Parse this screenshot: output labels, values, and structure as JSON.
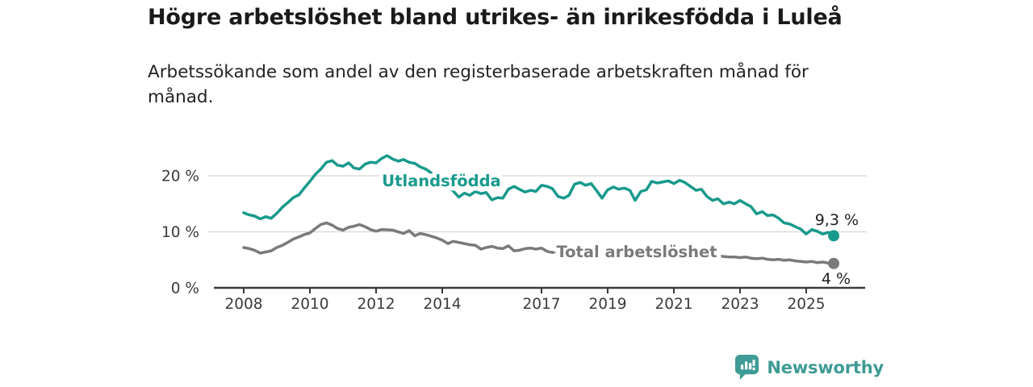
{
  "header": {
    "title": "Högre arbetslöshet bland utrikes- än inrikesfödda i Luleå",
    "subtitle": "Arbetssökande som andel av den registerbaserade arbetskraften månad för månad."
  },
  "colors": {
    "foreign_born_line": "#189A8C",
    "total_line": "#7A7A7A",
    "gridline": "#DBDBDB",
    "axis": "#3A3A3A",
    "tick_label": "#3A3A3A",
    "annotation_text": "#222222",
    "brand_teal": "#3F9B95"
  },
  "chart_data": {
    "type": "line",
    "title": "Högre arbetslöshet bland utrikes- än inrikesfödda i Luleå",
    "subtitle": "Arbetssökande som andel av den registerbaserade arbetskraften månad för månad.",
    "unit": "%",
    "grid": "horizontal",
    "legend_position": "inline-labels",
    "xlim": [
      2007.6,
      2026.4
    ],
    "ylim": [
      0,
      26
    ],
    "x_ticks": [
      2008,
      2010,
      2012,
      2014,
      2017,
      2019,
      2021,
      2023,
      2025
    ],
    "y_ticks": [
      {
        "value": 0,
        "label": "0 %"
      },
      {
        "value": 10,
        "label": "10 %"
      },
      {
        "value": 20,
        "label": "20 %"
      }
    ],
    "series": [
      {
        "name": "Utlandsfödda",
        "color": "#189A8C",
        "end_label": "9,3 %",
        "points": [
          [
            2008.0,
            13.4
          ],
          [
            2008.17,
            13.0
          ],
          [
            2008.33,
            12.8
          ],
          [
            2008.5,
            12.3
          ],
          [
            2008.67,
            12.7
          ],
          [
            2008.83,
            12.4
          ],
          [
            2009.0,
            13.3
          ],
          [
            2009.17,
            14.4
          ],
          [
            2009.33,
            15.2
          ],
          [
            2009.5,
            16.1
          ],
          [
            2009.67,
            16.6
          ],
          [
            2009.83,
            17.8
          ],
          [
            2010.0,
            19.0
          ],
          [
            2010.17,
            20.3
          ],
          [
            2010.33,
            21.2
          ],
          [
            2010.5,
            22.4
          ],
          [
            2010.67,
            22.7
          ],
          [
            2010.83,
            21.9
          ],
          [
            2011.0,
            21.7
          ],
          [
            2011.17,
            22.3
          ],
          [
            2011.33,
            21.4
          ],
          [
            2011.5,
            21.2
          ],
          [
            2011.67,
            22.1
          ],
          [
            2011.83,
            22.4
          ],
          [
            2012.0,
            22.3
          ],
          [
            2012.17,
            23.1
          ],
          [
            2012.33,
            23.6
          ],
          [
            2012.5,
            23.0
          ],
          [
            2012.67,
            22.6
          ],
          [
            2012.83,
            22.9
          ],
          [
            2013.0,
            22.4
          ],
          [
            2013.17,
            22.2
          ],
          [
            2013.33,
            21.6
          ],
          [
            2013.5,
            21.2
          ],
          [
            2013.67,
            20.5
          ],
          [
            2013.83,
            19.6
          ],
          [
            2014.0,
            18.6
          ],
          [
            2014.17,
            17.9
          ],
          [
            2014.33,
            17.3
          ],
          [
            2014.5,
            16.2
          ],
          [
            2014.67,
            16.9
          ],
          [
            2014.83,
            16.5
          ],
          [
            2015.0,
            17.2
          ],
          [
            2015.17,
            16.8
          ],
          [
            2015.33,
            17.0
          ],
          [
            2015.5,
            15.7
          ],
          [
            2015.67,
            16.1
          ],
          [
            2015.83,
            16.0
          ],
          [
            2016.0,
            17.6
          ],
          [
            2016.17,
            18.1
          ],
          [
            2016.33,
            17.6
          ],
          [
            2016.5,
            17.1
          ],
          [
            2016.67,
            17.4
          ],
          [
            2016.83,
            17.2
          ],
          [
            2017.0,
            18.3
          ],
          [
            2017.17,
            18.1
          ],
          [
            2017.33,
            17.7
          ],
          [
            2017.5,
            16.3
          ],
          [
            2017.67,
            16.0
          ],
          [
            2017.83,
            16.5
          ],
          [
            2018.0,
            18.5
          ],
          [
            2018.17,
            18.8
          ],
          [
            2018.33,
            18.3
          ],
          [
            2018.5,
            18.6
          ],
          [
            2018.67,
            17.3
          ],
          [
            2018.83,
            16.0
          ],
          [
            2019.0,
            17.5
          ],
          [
            2019.17,
            18.0
          ],
          [
            2019.33,
            17.6
          ],
          [
            2019.5,
            17.8
          ],
          [
            2019.67,
            17.4
          ],
          [
            2019.83,
            15.6
          ],
          [
            2020.0,
            17.2
          ],
          [
            2020.17,
            17.5
          ],
          [
            2020.33,
            19.0
          ],
          [
            2020.5,
            18.7
          ],
          [
            2020.67,
            18.9
          ],
          [
            2020.83,
            19.1
          ],
          [
            2021.0,
            18.6
          ],
          [
            2021.17,
            19.2
          ],
          [
            2021.33,
            18.8
          ],
          [
            2021.5,
            18.1
          ],
          [
            2021.67,
            17.4
          ],
          [
            2021.83,
            17.6
          ],
          [
            2022.0,
            16.3
          ],
          [
            2022.17,
            15.6
          ],
          [
            2022.33,
            15.9
          ],
          [
            2022.5,
            15.0
          ],
          [
            2022.67,
            15.3
          ],
          [
            2022.83,
            15.0
          ],
          [
            2023.0,
            15.6
          ],
          [
            2023.17,
            15.0
          ],
          [
            2023.33,
            14.5
          ],
          [
            2023.5,
            13.2
          ],
          [
            2023.67,
            13.6
          ],
          [
            2023.83,
            12.9
          ],
          [
            2024.0,
            13.0
          ],
          [
            2024.17,
            12.4
          ],
          [
            2024.33,
            11.6
          ],
          [
            2024.5,
            11.4
          ],
          [
            2024.67,
            10.9
          ],
          [
            2024.83,
            10.5
          ],
          [
            2025.0,
            9.6
          ],
          [
            2025.17,
            10.4
          ],
          [
            2025.33,
            10.1
          ],
          [
            2025.5,
            9.6
          ],
          [
            2025.67,
            9.9
          ],
          [
            2025.83,
            9.3
          ]
        ]
      },
      {
        "name": "Total arbetslöshet",
        "color": "#7A7A7A",
        "end_label": "4 %",
        "points": [
          [
            2008.0,
            7.2
          ],
          [
            2008.17,
            7.0
          ],
          [
            2008.33,
            6.7
          ],
          [
            2008.5,
            6.2
          ],
          [
            2008.67,
            6.4
          ],
          [
            2008.83,
            6.6
          ],
          [
            2009.0,
            7.2
          ],
          [
            2009.17,
            7.6
          ],
          [
            2009.33,
            8.1
          ],
          [
            2009.5,
            8.7
          ],
          [
            2009.67,
            9.1
          ],
          [
            2009.83,
            9.5
          ],
          [
            2010.0,
            9.8
          ],
          [
            2010.17,
            10.6
          ],
          [
            2010.33,
            11.3
          ],
          [
            2010.5,
            11.6
          ],
          [
            2010.67,
            11.2
          ],
          [
            2010.83,
            10.6
          ],
          [
            2011.0,
            10.3
          ],
          [
            2011.17,
            10.8
          ],
          [
            2011.33,
            11.0
          ],
          [
            2011.5,
            11.3
          ],
          [
            2011.67,
            10.9
          ],
          [
            2011.83,
            10.4
          ],
          [
            2012.0,
            10.1
          ],
          [
            2012.17,
            10.4
          ],
          [
            2012.5,
            10.3
          ],
          [
            2012.83,
            9.7
          ],
          [
            2013.0,
            10.2
          ],
          [
            2013.17,
            9.3
          ],
          [
            2013.33,
            9.7
          ],
          [
            2013.5,
            9.5
          ],
          [
            2013.67,
            9.2
          ],
          [
            2013.83,
            8.9
          ],
          [
            2014.0,
            8.5
          ],
          [
            2014.17,
            7.9
          ],
          [
            2014.33,
            8.3
          ],
          [
            2014.5,
            8.1
          ],
          [
            2014.67,
            7.9
          ],
          [
            2014.83,
            7.7
          ],
          [
            2015.0,
            7.6
          ],
          [
            2015.17,
            6.9
          ],
          [
            2015.33,
            7.2
          ],
          [
            2015.5,
            7.4
          ],
          [
            2015.67,
            7.1
          ],
          [
            2015.83,
            7.0
          ],
          [
            2016.0,
            7.5
          ],
          [
            2016.17,
            6.6
          ],
          [
            2016.33,
            6.7
          ],
          [
            2016.5,
            7.0
          ],
          [
            2016.67,
            7.1
          ],
          [
            2016.83,
            6.9
          ],
          [
            2017.0,
            7.1
          ],
          [
            2017.17,
            6.5
          ],
          [
            2017.33,
            6.3
          ],
          [
            2017.5,
            6.6
          ],
          [
            2017.67,
            6.5
          ],
          [
            2017.83,
            6.3
          ],
          [
            2018.0,
            6.4
          ],
          [
            2018.5,
            6.2
          ],
          [
            2019.0,
            6.0
          ],
          [
            2019.5,
            5.9
          ],
          [
            2020.0,
            6.3
          ],
          [
            2020.5,
            6.6
          ],
          [
            2021.0,
            6.4
          ],
          [
            2021.5,
            6.0
          ],
          [
            2022.0,
            5.8
          ],
          [
            2022.33,
            5.7
          ],
          [
            2022.5,
            5.6
          ],
          [
            2022.67,
            5.5
          ],
          [
            2022.83,
            5.5
          ],
          [
            2023.0,
            5.4
          ],
          [
            2023.17,
            5.5
          ],
          [
            2023.33,
            5.3
          ],
          [
            2023.5,
            5.2
          ],
          [
            2023.67,
            5.3
          ],
          [
            2023.83,
            5.1
          ],
          [
            2024.0,
            5.0
          ],
          [
            2024.17,
            5.1
          ],
          [
            2024.33,
            4.9
          ],
          [
            2024.5,
            5.0
          ],
          [
            2024.67,
            4.8
          ],
          [
            2024.83,
            4.7
          ],
          [
            2025.0,
            4.6
          ],
          [
            2025.17,
            4.7
          ],
          [
            2025.33,
            4.5
          ],
          [
            2025.5,
            4.6
          ],
          [
            2025.67,
            4.4
          ],
          [
            2025.83,
            4.35
          ]
        ]
      }
    ]
  },
  "footer": {
    "brand": "Newsworthy",
    "logo_icon": "bar-chart-speech-bubble-icon"
  }
}
